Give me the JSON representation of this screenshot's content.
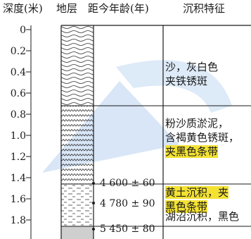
{
  "headers": {
    "depth": "深度(米)",
    "strata": "地层",
    "age": "距今年龄(年)",
    "features": "沉积特征"
  },
  "depth_ticks": [
    "0",
    "0.2",
    "0.4",
    "0.6",
    "0.8",
    "1.0",
    "1.2",
    "1.4",
    "1.6",
    "1.8"
  ],
  "layers": [
    {
      "lines": [
        "沙，灰白色",
        "夹铁锈斑"
      ],
      "highlight_lines": []
    },
    {
      "lines": [
        "粉沙质淤泥，",
        "含褐黄色锈斑，",
        "夹黑色条带"
      ],
      "highlight_lines": [
        2
      ]
    },
    {
      "lines": [
        "黄土沉积，夹",
        "黑色条带"
      ],
      "highlight_lines": [
        0,
        1
      ]
    },
    {
      "lines": [
        "湖沼沉积，黑色"
      ],
      "highlight_lines": []
    }
  ],
  "ages": [
    "4 600 ± 60",
    "4 780 ± 90",
    "5 450 ± 80"
  ],
  "colors": {
    "bottom_layer": "#cfcfcf",
    "watermark": "#8fb8e8",
    "highlight": "#f3e233"
  }
}
